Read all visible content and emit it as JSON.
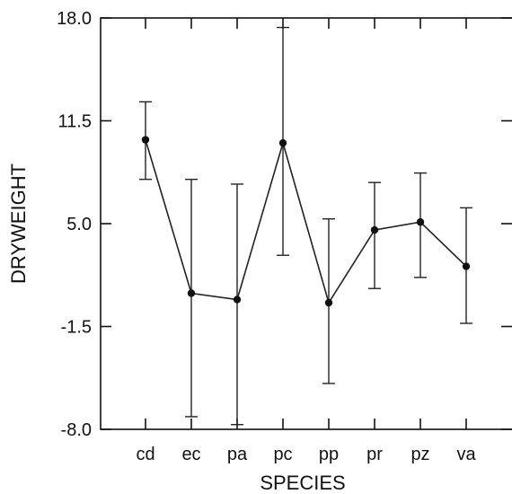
{
  "chart_data": {
    "type": "line",
    "xlabel": "SPECIES",
    "ylabel": "DRYWEIGHT",
    "categories": [
      "cd",
      "ec",
      "pa",
      "pc",
      "pp",
      "pr",
      "pz",
      "va"
    ],
    "y_ticks": [
      "18.0",
      "11.5",
      "5.0",
      "-1.5",
      "-8.0"
    ],
    "ylim": [
      -8.0,
      18.0
    ],
    "grid": false,
    "legend": "none",
    "series": [
      {
        "values": [
          10.3,
          0.6,
          0.2,
          10.1,
          0.0,
          4.6,
          5.1,
          2.3
        ],
        "error_low": [
          7.8,
          -7.2,
          -7.7,
          3.0,
          -5.1,
          0.9,
          1.6,
          -1.3
        ],
        "error_high": [
          12.7,
          7.8,
          7.5,
          17.4,
          5.3,
          7.6,
          8.2,
          6.0
        ]
      }
    ],
    "colors": {
      "line": "#222222",
      "marker": "#111111",
      "frame": "#111111"
    }
  }
}
